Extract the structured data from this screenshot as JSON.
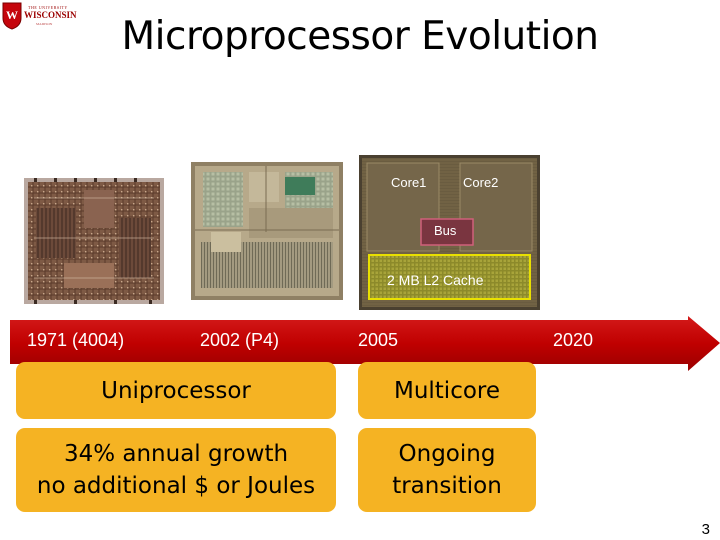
{
  "slide": {
    "title": "Microprocessor Evolution",
    "page_number": "3"
  },
  "logo": {
    "line1": "THE UNIVERSITY",
    "line2": "WISCONSIN",
    "line3": "MADISON"
  },
  "die_labels": {
    "core1": "Core1",
    "core2": "Core2",
    "bus": "Bus",
    "cache": "2 MB L2 Cache"
  },
  "timeline": {
    "color": "#c00000",
    "labels": [
      "1971 (4004)",
      "2002 (P4)",
      "2005",
      "2020"
    ]
  },
  "boxes": {
    "color": "#f5b323",
    "uniprocessor": "Uniprocessor",
    "multicore": "Multicore",
    "growth_line1": "34% annual growth",
    "growth_line2": "no additional $ or Joules",
    "transition_line1": "Ongoing",
    "transition_line2": "transition"
  }
}
